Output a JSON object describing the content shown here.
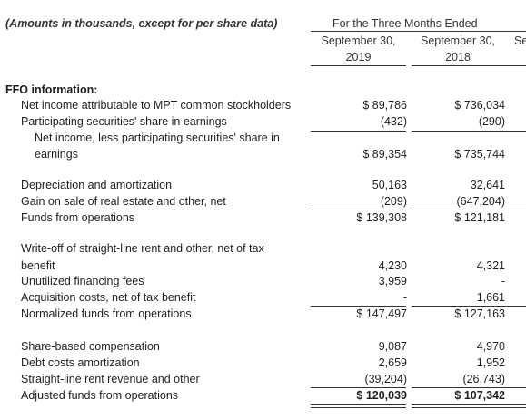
{
  "header": {
    "note": "(Amounts in thousands, except for per share data)",
    "period": "For the Three Months Ended",
    "columns": [
      {
        "line1": "September 30,",
        "line2": "2019"
      },
      {
        "line1": "September 30,",
        "line2": "2018"
      },
      {
        "line1": "Se",
        "line2": ""
      }
    ]
  },
  "section_title": "FFO information:",
  "rows": [
    {
      "label": "Net income attributable to MPT common stockholders",
      "v2019": "$ 89,786",
      "v2018": "$ 736,034"
    },
    {
      "label": "Participating securities' share in earnings",
      "v2019": "(432)",
      "v2018": "(290)"
    },
    {
      "label_line1": "Net income, less participating securities' share in",
      "label_line2": "earnings",
      "v2019": "$ 89,354",
      "v2018": "$ 735,744"
    },
    {
      "label": "Depreciation and amortization",
      "v2019": "50,163",
      "v2018": "32,641"
    },
    {
      "label": "Gain on sale of real estate and other, net",
      "v2019": "(209)",
      "v2018": "(647,204)"
    },
    {
      "label": "Funds from operations",
      "v2019": "$ 139,308",
      "v2018": "$ 121,181"
    },
    {
      "label_line1": "Write-off of straight-line rent and other, net of tax",
      "label_line2": "benefit",
      "v2019": "4,230",
      "v2018": "4,321"
    },
    {
      "label": "Unutilized financing fees",
      "v2019": "3,959",
      "v2018": "-"
    },
    {
      "label": "Acquisition costs, net of tax benefit",
      "v2019": "-",
      "v2018": "1,661"
    },
    {
      "label": "Normalized funds from operations",
      "v2019": "$ 147,497",
      "v2018": "$ 127,163"
    },
    {
      "label": "Share-based compensation",
      "v2019": "9,087",
      "v2018": "4,970"
    },
    {
      "label": "Debt costs amortization",
      "v2019": "2,659",
      "v2018": "1,952"
    },
    {
      "label": "Straight-line rent revenue and other",
      "v2019": "(39,204)",
      "v2018": "(26,743)"
    },
    {
      "label": "Adjusted funds from operations",
      "v2019": "$ 120,039",
      "v2018": "$ 107,342"
    }
  ]
}
